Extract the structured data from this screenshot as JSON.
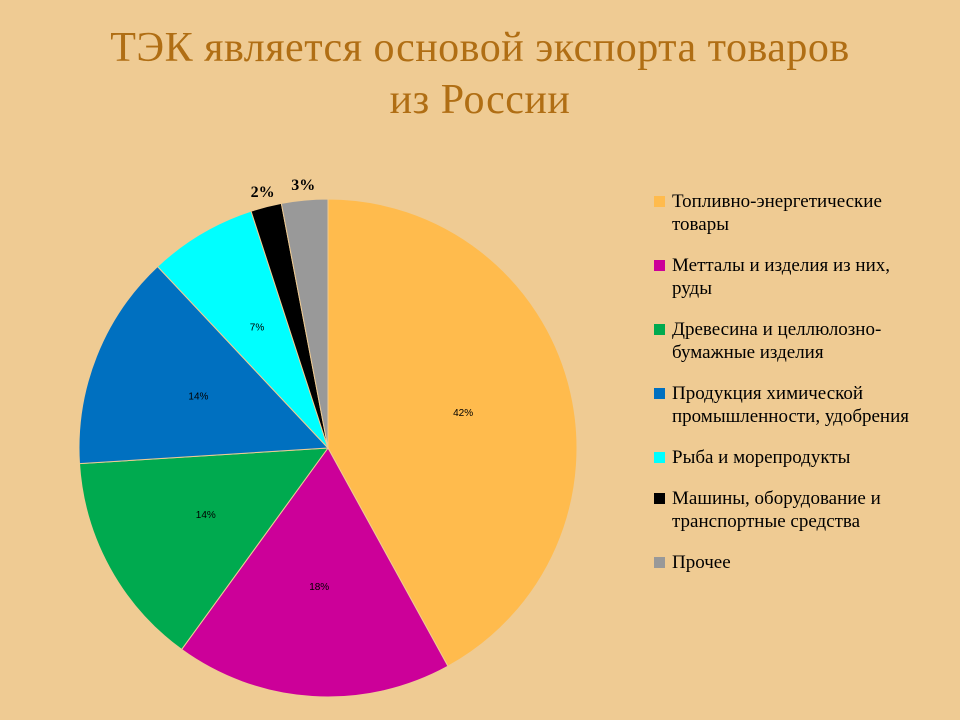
{
  "chart_data": {
    "type": "pie",
    "title_lines": [
      "ТЭК является основой экспорта товаров",
      "из России"
    ],
    "slices": [
      {
        "label": "Топливно-энергетические товары",
        "legend_lines": [
          "Топливно-энергетические",
          "товары"
        ],
        "value": 42,
        "display": "42%",
        "color": "#FFBB4D"
      },
      {
        "label": "Метталы и изделия из них, руды",
        "legend_lines": [
          "Метталы и изделия из них,",
          "руды"
        ],
        "value": 18,
        "display": "18%",
        "color": "#CC0099"
      },
      {
        "label": "Древесина и целлюлозно-бумажные изделия",
        "legend_lines": [
          "Древесина и целлюлозно-",
          "бумажные изделия"
        ],
        "value": 14,
        "display": "14%",
        "color": "#00AA4F"
      },
      {
        "label": "Продукция химической промышленности, удобрения",
        "legend_lines": [
          "Продукция химической",
          "промышленности, удобрения"
        ],
        "value": 14,
        "display": "14%",
        "color": "#0070C0"
      },
      {
        "label": "Рыба и морепродукты",
        "legend_lines": [
          "Рыба и морепродукты"
        ],
        "value": 7,
        "display": "7%",
        "color": "#00FFFF"
      },
      {
        "label": "Машины, оборудование и транспортные средства",
        "legend_lines": [
          "Машины, оборудование и",
          "транспортные средства"
        ],
        "value": 2,
        "display": "2%",
        "color": "#000000"
      },
      {
        "label": "Прочее",
        "legend_lines": [
          "Прочее"
        ],
        "value": 3,
        "display": "3%",
        "color": "#999999"
      }
    ],
    "legend_position": "right",
    "start_angle": "12 o'clock",
    "direction": "clockwise"
  }
}
